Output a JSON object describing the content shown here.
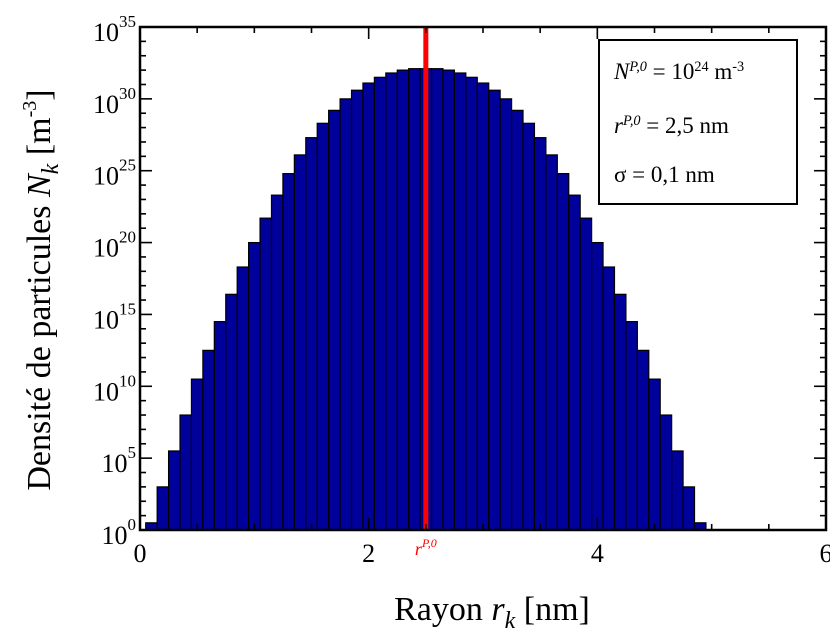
{
  "chart_data": {
    "type": "bar",
    "ylabel_text": "Densité de particules",
    "ylabel_symbol": "N",
    "ylabel_sub": "k",
    "ylabel_unit_base": "[m",
    "ylabel_unit_exp": "-3",
    "ylabel_unit_close": "]",
    "xlabel_text": "Rayon",
    "xlabel_symbol": "r",
    "xlabel_sub": "k",
    "xlabel_unit": "[nm]",
    "xlim": [
      0,
      6
    ],
    "ylim_log10": [
      0,
      35
    ],
    "y_scale": "log",
    "x_ticks": [
      {
        "value": 0,
        "label": "0"
      },
      {
        "value": 2,
        "label": "2"
      },
      {
        "value": 4,
        "label": "4"
      },
      {
        "value": 6,
        "label": "6"
      }
    ],
    "y_ticks": [
      {
        "exp": 0,
        "base": "10",
        "label": "0"
      },
      {
        "exp": 5,
        "base": "10",
        "label": "5"
      },
      {
        "exp": 10,
        "base": "10",
        "label": "10"
      },
      {
        "exp": 15,
        "base": "10",
        "label": "15"
      },
      {
        "exp": 20,
        "base": "10",
        "label": "20"
      },
      {
        "exp": 25,
        "base": "10",
        "label": "25"
      },
      {
        "exp": 30,
        "base": "10",
        "label": "30"
      },
      {
        "exp": 35,
        "base": "10",
        "label": "35"
      }
    ],
    "bar_color": "#00009a",
    "bar_edge_color": "#000000",
    "bar_width": 0.1,
    "bars_x": [
      0.1,
      0.2,
      0.3,
      0.4,
      0.5,
      0.6,
      0.7,
      0.8,
      0.9,
      1.0,
      1.1,
      1.2,
      1.3,
      1.4,
      1.5,
      1.6,
      1.7,
      1.8,
      1.9,
      2.0,
      2.1,
      2.2,
      2.3,
      2.4,
      2.5,
      2.6,
      2.7,
      2.8,
      2.9,
      3.0,
      3.1,
      3.2,
      3.3,
      3.4,
      3.5,
      3.6,
      3.7,
      3.8,
      3.9,
      4.0,
      4.1,
      4.2,
      4.3,
      4.4,
      4.5,
      4.6,
      4.7,
      4.8,
      4.9
    ],
    "bars_log10": [
      0.5,
      3.0,
      5.5,
      8.0,
      10.5,
      12.5,
      14.5,
      16.4,
      18.3,
      20.0,
      21.7,
      23.3,
      24.8,
      26.1,
      27.3,
      28.3,
      29.2,
      30.0,
      30.6,
      31.1,
      31.5,
      31.8,
      32.0,
      32.1,
      32.1,
      32.1,
      32.0,
      31.8,
      31.5,
      31.1,
      30.6,
      30.0,
      29.2,
      28.3,
      27.3,
      26.1,
      24.8,
      23.3,
      21.7,
      20.0,
      18.3,
      16.4,
      14.5,
      12.5,
      10.5,
      8.0,
      5.5,
      3.0,
      0.5
    ],
    "marker": {
      "x": 2.5,
      "color": "#ff0000",
      "label_base": "r",
      "label_sup": "P,0"
    }
  },
  "legend": {
    "line1_symbol": "N",
    "line1_sup": "P,0",
    "line1_eq": " = 10",
    "line1_exp": "24",
    "line1_unit": " m",
    "line1_unit_exp": "-3",
    "line2_symbol": "r",
    "line2_sup": "P,0",
    "line2_rest": " = 2,5 nm",
    "line3_text": "σ = 0,1 nm"
  }
}
